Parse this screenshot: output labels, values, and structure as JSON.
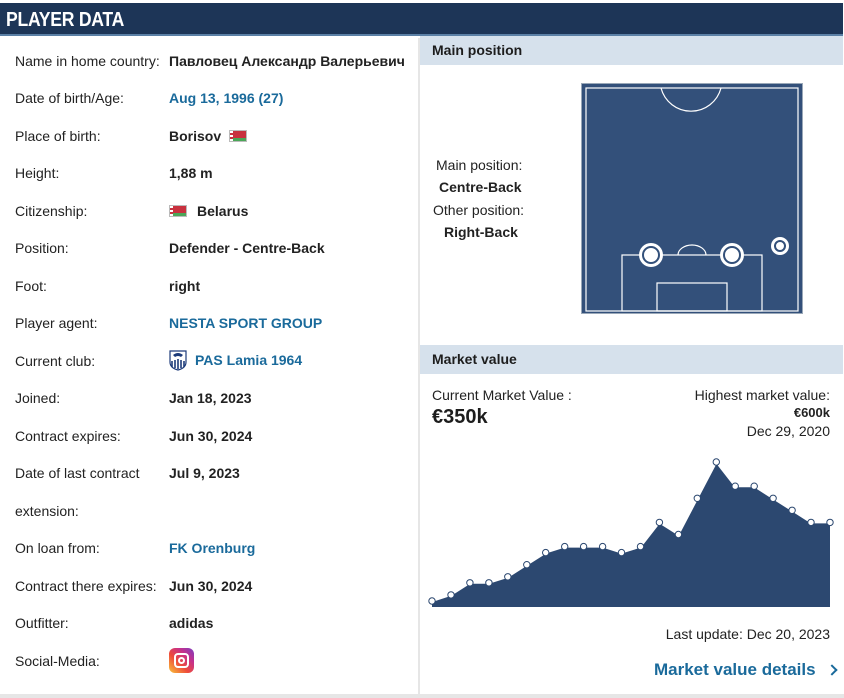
{
  "header": {
    "title": "PLAYER DATA"
  },
  "player": {
    "rows": [
      {
        "label": "Name in home country:",
        "value": "Павловец Александр Валерьевич"
      },
      {
        "label": "Date of birth/Age:",
        "value": "Aug 13, 1996 (27)"
      },
      {
        "label": "Place of birth:",
        "value": "Borisov"
      },
      {
        "label": "Height:",
        "value": "1,88 m"
      },
      {
        "label": "Citizenship:",
        "value": "Belarus"
      },
      {
        "label": "Position:",
        "value": "Defender - Centre-Back"
      },
      {
        "label": "Foot:",
        "value": "right"
      },
      {
        "label": "Player agent:",
        "value": "NESTA SPORT GROUP"
      },
      {
        "label": "Current club:",
        "value": "PAS Lamia 1964"
      },
      {
        "label": "Joined:",
        "value": "Jan 18, 2023"
      },
      {
        "label": "Contract expires:",
        "value": "Jun 30, 2024"
      },
      {
        "label": "Date of last contract",
        "label2": "extension:",
        "value": "Jul 9, 2023"
      },
      {
        "label": "On loan from:",
        "value": "FK Orenburg"
      },
      {
        "label": "Contract there expires:",
        "value": "Jun 30, 2024"
      },
      {
        "label": "Outfitter:",
        "value": "adidas"
      },
      {
        "label": "Social-Media:",
        "icon": "instagram-icon"
      }
    ]
  },
  "position": {
    "heading": "Main position",
    "main_label": "Main position:",
    "main_value": "Centre-Back",
    "other_label": "Other position:",
    "other_value": "Right-Back"
  },
  "market": {
    "heading": "Market value",
    "current_label": "Current Market Value :",
    "current_value": "€350k",
    "highest_label": "Highest market value:",
    "highest_value": "€600k",
    "highest_date": "Dec 29, 2020",
    "last_update": "Last update: Dec 20, 2023",
    "details_link": "Market value details"
  },
  "colors": {
    "header_bg": "#1d3557",
    "link": "#1a6a9b",
    "box_head": "#d6e1ec",
    "pitch": "#33507a",
    "chart_fill": "#2c4870"
  },
  "chart_data": {
    "type": "area",
    "title": "",
    "xlabel": "",
    "ylabel": "",
    "values_k_eur": [
      25,
      50,
      100,
      100,
      125,
      175,
      225,
      250,
      250,
      250,
      225,
      250,
      350,
      300,
      450,
      600,
      500,
      500,
      450,
      400,
      350,
      350
    ]
  }
}
